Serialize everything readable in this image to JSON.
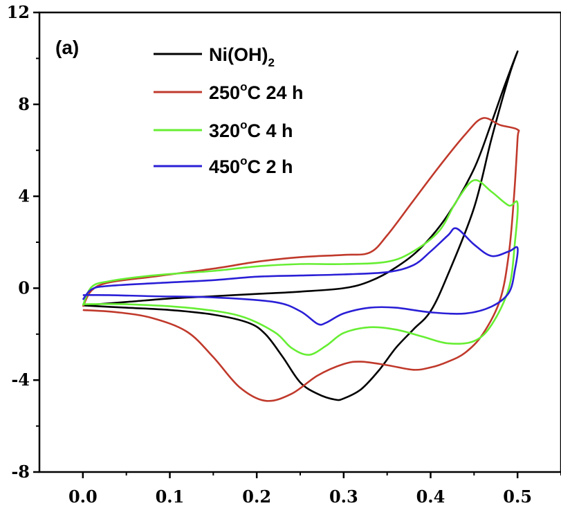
{
  "chart_data": {
    "type": "line",
    "panel_label": "(a)",
    "xlabel": "",
    "ylabel": "",
    "xlim": [
      -0.05,
      0.55
    ],
    "ylim": [
      -8,
      12
    ],
    "xticks": [
      0.0,
      0.1,
      0.2,
      0.3,
      0.4,
      0.5
    ],
    "xtick_labels": [
      "0.0",
      "0.1",
      "0.2",
      "0.3",
      "0.4",
      "0.5"
    ],
    "yticks": [
      -8,
      -4,
      0,
      4,
      8,
      12
    ],
    "ytick_labels": [
      "-8",
      "-4",
      "0",
      "4",
      "8",
      "12"
    ],
    "grid": false,
    "legend_position": "top-left",
    "legend": [
      {
        "main": "Ni(OH)",
        "sup": "",
        "sub": "2",
        "tail": ""
      },
      {
        "main": "250",
        "sup": "o",
        "sub": "",
        "tail": "C 24 h"
      },
      {
        "main": "320",
        "sup": "o",
        "sub": "",
        "tail": "C 4 h"
      },
      {
        "main": "450",
        "sup": "o",
        "sub": "",
        "tail": "C 2 h"
      }
    ],
    "series": [
      {
        "color": "#000000",
        "points": [
          [
            0.0,
            -0.75
          ],
          [
            0.05,
            -0.6
          ],
          [
            0.1,
            -0.45
          ],
          [
            0.15,
            -0.35
          ],
          [
            0.2,
            -0.25
          ],
          [
            0.25,
            -0.15
          ],
          [
            0.3,
            0.0
          ],
          [
            0.33,
            0.3
          ],
          [
            0.36,
            0.9
          ],
          [
            0.39,
            1.8
          ],
          [
            0.42,
            3.2
          ],
          [
            0.45,
            5.2
          ],
          [
            0.47,
            7.2
          ],
          [
            0.485,
            8.8
          ],
          [
            0.5,
            10.3
          ],
          [
            0.49,
            9.2
          ],
          [
            0.47,
            6.5
          ],
          [
            0.45,
            3.5
          ],
          [
            0.42,
            0.6
          ],
          [
            0.4,
            -1.0
          ],
          [
            0.38,
            -1.8
          ],
          [
            0.36,
            -2.6
          ],
          [
            0.34,
            -3.6
          ],
          [
            0.32,
            -4.4
          ],
          [
            0.3,
            -4.8
          ],
          [
            0.29,
            -4.85
          ],
          [
            0.27,
            -4.6
          ],
          [
            0.25,
            -4.1
          ],
          [
            0.23,
            -3.0
          ],
          [
            0.21,
            -2.0
          ],
          [
            0.19,
            -1.5
          ],
          [
            0.15,
            -1.15
          ],
          [
            0.1,
            -0.95
          ],
          [
            0.05,
            -0.85
          ],
          [
            0.0,
            -0.75
          ]
        ]
      },
      {
        "color": "#c0392b",
        "points": [
          [
            0.0,
            -0.8
          ],
          [
            0.01,
            -0.1
          ],
          [
            0.03,
            0.25
          ],
          [
            0.08,
            0.5
          ],
          [
            0.15,
            0.85
          ],
          [
            0.2,
            1.15
          ],
          [
            0.25,
            1.35
          ],
          [
            0.3,
            1.45
          ],
          [
            0.33,
            1.55
          ],
          [
            0.35,
            2.3
          ],
          [
            0.38,
            3.8
          ],
          [
            0.41,
            5.3
          ],
          [
            0.44,
            6.7
          ],
          [
            0.46,
            7.4
          ],
          [
            0.48,
            7.1
          ],
          [
            0.5,
            6.9
          ],
          [
            0.5,
            6.5
          ],
          [
            0.496,
            4.0
          ],
          [
            0.49,
            1.5
          ],
          [
            0.48,
            -0.5
          ],
          [
            0.46,
            -2.0
          ],
          [
            0.44,
            -2.8
          ],
          [
            0.42,
            -3.2
          ],
          [
            0.4,
            -3.45
          ],
          [
            0.38,
            -3.55
          ],
          [
            0.35,
            -3.35
          ],
          [
            0.32,
            -3.2
          ],
          [
            0.3,
            -3.3
          ],
          [
            0.27,
            -3.8
          ],
          [
            0.24,
            -4.6
          ],
          [
            0.21,
            -4.9
          ],
          [
            0.18,
            -4.3
          ],
          [
            0.15,
            -3.0
          ],
          [
            0.12,
            -1.9
          ],
          [
            0.08,
            -1.3
          ],
          [
            0.04,
            -1.05
          ],
          [
            0.0,
            -0.95
          ]
        ]
      },
      {
        "color": "#66ee33",
        "points": [
          [
            0.0,
            -0.75
          ],
          [
            0.01,
            0.05
          ],
          [
            0.03,
            0.3
          ],
          [
            0.08,
            0.55
          ],
          [
            0.15,
            0.75
          ],
          [
            0.2,
            0.95
          ],
          [
            0.25,
            1.05
          ],
          [
            0.3,
            1.05
          ],
          [
            0.35,
            1.15
          ],
          [
            0.38,
            1.6
          ],
          [
            0.41,
            2.5
          ],
          [
            0.43,
            3.8
          ],
          [
            0.45,
            4.7
          ],
          [
            0.47,
            4.2
          ],
          [
            0.49,
            3.6
          ],
          [
            0.5,
            3.7
          ],
          [
            0.497,
            2.0
          ],
          [
            0.49,
            0.0
          ],
          [
            0.47,
            -1.6
          ],
          [
            0.45,
            -2.3
          ],
          [
            0.42,
            -2.4
          ],
          [
            0.39,
            -2.1
          ],
          [
            0.36,
            -1.8
          ],
          [
            0.33,
            -1.7
          ],
          [
            0.3,
            -1.95
          ],
          [
            0.28,
            -2.5
          ],
          [
            0.26,
            -2.9
          ],
          [
            0.24,
            -2.6
          ],
          [
            0.22,
            -1.9
          ],
          [
            0.18,
            -1.2
          ],
          [
            0.12,
            -0.85
          ],
          [
            0.05,
            -0.7
          ],
          [
            0.0,
            -0.7
          ]
        ]
      },
      {
        "color": "#2a1fd6",
        "points": [
          [
            0.0,
            -0.5
          ],
          [
            0.01,
            -0.05
          ],
          [
            0.03,
            0.1
          ],
          [
            0.1,
            0.25
          ],
          [
            0.15,
            0.35
          ],
          [
            0.2,
            0.5
          ],
          [
            0.25,
            0.55
          ],
          [
            0.3,
            0.6
          ],
          [
            0.35,
            0.7
          ],
          [
            0.38,
            1.0
          ],
          [
            0.4,
            1.6
          ],
          [
            0.42,
            2.3
          ],
          [
            0.43,
            2.6
          ],
          [
            0.45,
            1.9
          ],
          [
            0.47,
            1.4
          ],
          [
            0.49,
            1.6
          ],
          [
            0.5,
            1.75
          ],
          [
            0.497,
            0.8
          ],
          [
            0.49,
            -0.2
          ],
          [
            0.47,
            -0.8
          ],
          [
            0.44,
            -1.1
          ],
          [
            0.4,
            -1.05
          ],
          [
            0.36,
            -0.85
          ],
          [
            0.33,
            -0.85
          ],
          [
            0.3,
            -1.1
          ],
          [
            0.28,
            -1.5
          ],
          [
            0.27,
            -1.55
          ],
          [
            0.25,
            -1.0
          ],
          [
            0.22,
            -0.6
          ],
          [
            0.15,
            -0.4
          ],
          [
            0.08,
            -0.35
          ],
          [
            0.03,
            -0.3
          ],
          [
            0.0,
            -0.3
          ]
        ]
      }
    ]
  }
}
